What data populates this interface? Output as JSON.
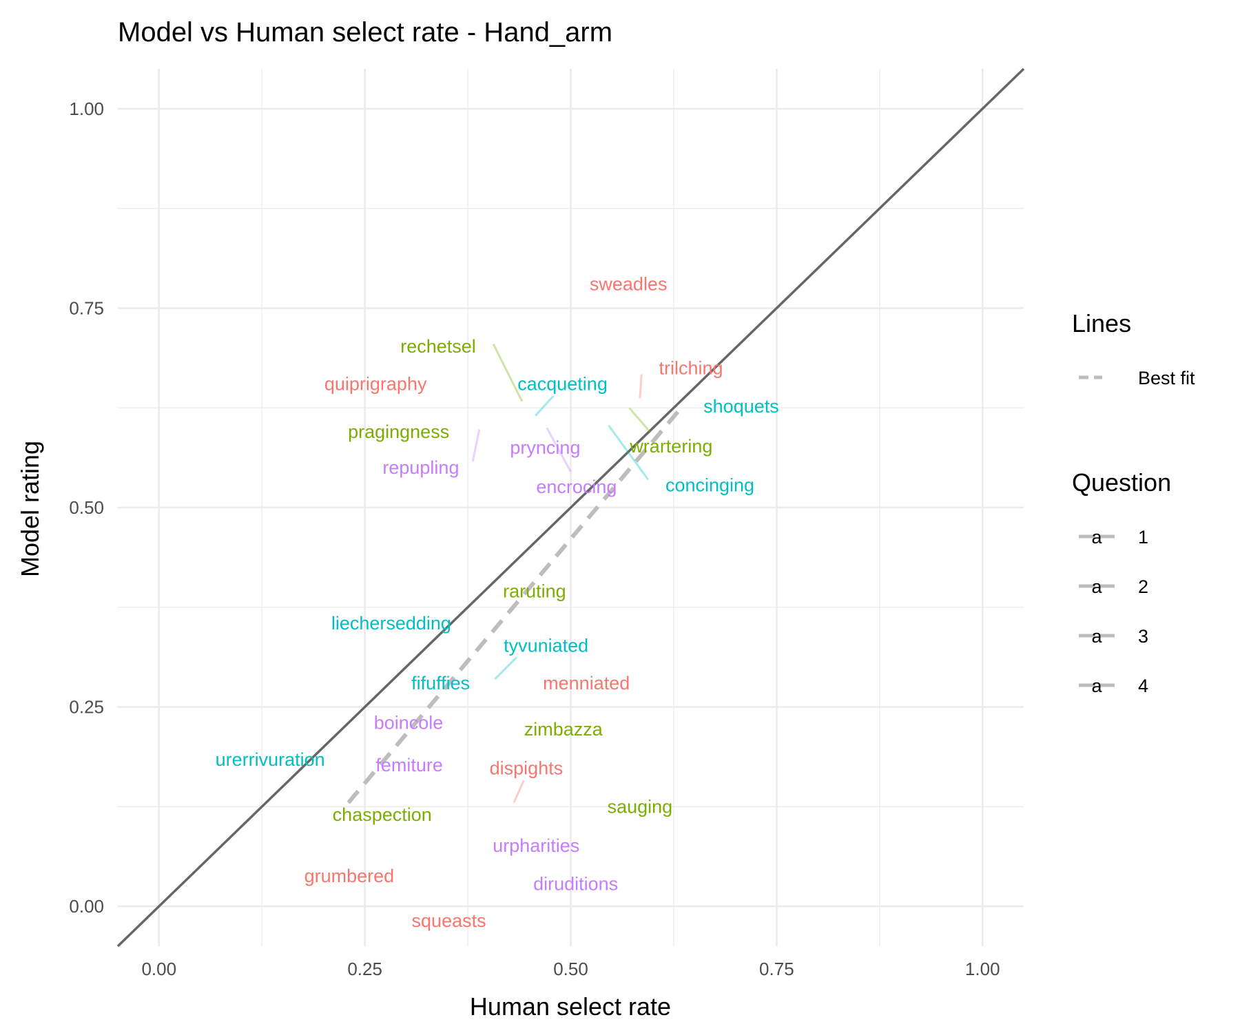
{
  "chart_data": {
    "type": "scatter",
    "title": "Model vs Human select rate - Hand_arm",
    "xlabel": "Human select rate",
    "ylabel": "Model rating",
    "xlim": [
      -0.05,
      1.05
    ],
    "ylim": [
      -0.05,
      1.05
    ],
    "x_ticks": [
      "0.00",
      "0.25",
      "0.50",
      "0.75",
      "1.00"
    ],
    "y_ticks": [
      "0.00",
      "0.25",
      "0.50",
      "0.75",
      "1.00"
    ],
    "reference_line": {
      "type": "identity",
      "color": "#666666"
    },
    "best_fit": {
      "x": [
        0.23,
        0.63
      ],
      "y": [
        0.13,
        0.62
      ],
      "color": "#bdbdbd",
      "style": "dashed"
    },
    "legend": {
      "lines_title": "Lines",
      "lines_label": "Best fit",
      "question_title": "Question",
      "question_glyph": "a",
      "questions": [
        {
          "label": "1",
          "color": "#F8766D"
        },
        {
          "label": "2",
          "color": "#7CAE00"
        },
        {
          "label": "3",
          "color": "#00BFC4"
        },
        {
          "label": "4",
          "color": "#C77CFF"
        }
      ]
    },
    "points": [
      {
        "word": "sweadles",
        "question": "1",
        "lx": 0.57,
        "ly": 0.78
      },
      {
        "word": "trilching",
        "question": "1",
        "lx": 0.646,
        "ly": 0.675,
        "seg": [
          0.586,
          0.667,
          0.584,
          0.637
        ]
      },
      {
        "word": "quiprigraphy",
        "question": "1",
        "lx": 0.263,
        "ly": 0.655
      },
      {
        "word": "menniated",
        "question": "1",
        "lx": 0.519,
        "ly": 0.28
      },
      {
        "word": "dispights",
        "question": "1",
        "lx": 0.446,
        "ly": 0.173,
        "seg": [
          0.443,
          0.158,
          0.431,
          0.13
        ]
      },
      {
        "word": "grumbered",
        "question": "1",
        "lx": 0.231,
        "ly": 0.038
      },
      {
        "word": "squeasts",
        "question": "1",
        "lx": 0.352,
        "ly": -0.018
      },
      {
        "word": "rechetsel",
        "question": "2",
        "lx": 0.339,
        "ly": 0.702,
        "seg": [
          0.406,
          0.705,
          0.441,
          0.633
        ]
      },
      {
        "word": "pragingness",
        "question": "2",
        "lx": 0.291,
        "ly": 0.595
      },
      {
        "word": "wrartering",
        "question": "2",
        "lx": 0.622,
        "ly": 0.577,
        "seg": [
          0.571,
          0.625,
          0.597,
          0.594
        ]
      },
      {
        "word": "raruting",
        "question": "2",
        "lx": 0.456,
        "ly": 0.395
      },
      {
        "word": "zimbazza",
        "question": "2",
        "lx": 0.491,
        "ly": 0.222
      },
      {
        "word": "chaspection",
        "question": "2",
        "lx": 0.271,
        "ly": 0.115
      },
      {
        "word": "sauging",
        "question": "2",
        "lx": 0.584,
        "ly": 0.125
      },
      {
        "word": "cacqueting",
        "question": "3",
        "lx": 0.49,
        "ly": 0.655,
        "seg": [
          0.479,
          0.64,
          0.457,
          0.615
        ]
      },
      {
        "word": "shoquets",
        "question": "3",
        "lx": 0.707,
        "ly": 0.627
      },
      {
        "word": "concinging",
        "question": "3",
        "lx": 0.669,
        "ly": 0.528,
        "seg": [
          0.546,
          0.603,
          0.594,
          0.535
        ]
      },
      {
        "word": "liechersedding",
        "question": "3",
        "lx": 0.282,
        "ly": 0.355
      },
      {
        "word": "tyvuniated",
        "question": "3",
        "lx": 0.47,
        "ly": 0.327,
        "seg": [
          0.434,
          0.312,
          0.408,
          0.285
        ]
      },
      {
        "word": "fifuffies",
        "question": "3",
        "lx": 0.342,
        "ly": 0.28
      },
      {
        "word": "urerrivuration",
        "question": "3",
        "lx": 0.135,
        "ly": 0.184
      },
      {
        "word": "pryncing",
        "question": "4",
        "lx": 0.469,
        "ly": 0.575,
        "seg": [
          0.471,
          0.6,
          0.5,
          0.545
        ]
      },
      {
        "word": "repupling",
        "question": "4",
        "lx": 0.318,
        "ly": 0.55,
        "seg": [
          0.389,
          0.598,
          0.381,
          0.558
        ]
      },
      {
        "word": "encrocing",
        "question": "4",
        "lx": 0.507,
        "ly": 0.526
      },
      {
        "word": "boincole",
        "question": "4",
        "lx": 0.303,
        "ly": 0.23
      },
      {
        "word": "femiture",
        "question": "4",
        "lx": 0.304,
        "ly": 0.177
      },
      {
        "word": "urpharities",
        "question": "4",
        "lx": 0.458,
        "ly": 0.076
      },
      {
        "word": "diruditions",
        "question": "4",
        "lx": 0.506,
        "ly": 0.028
      }
    ]
  }
}
